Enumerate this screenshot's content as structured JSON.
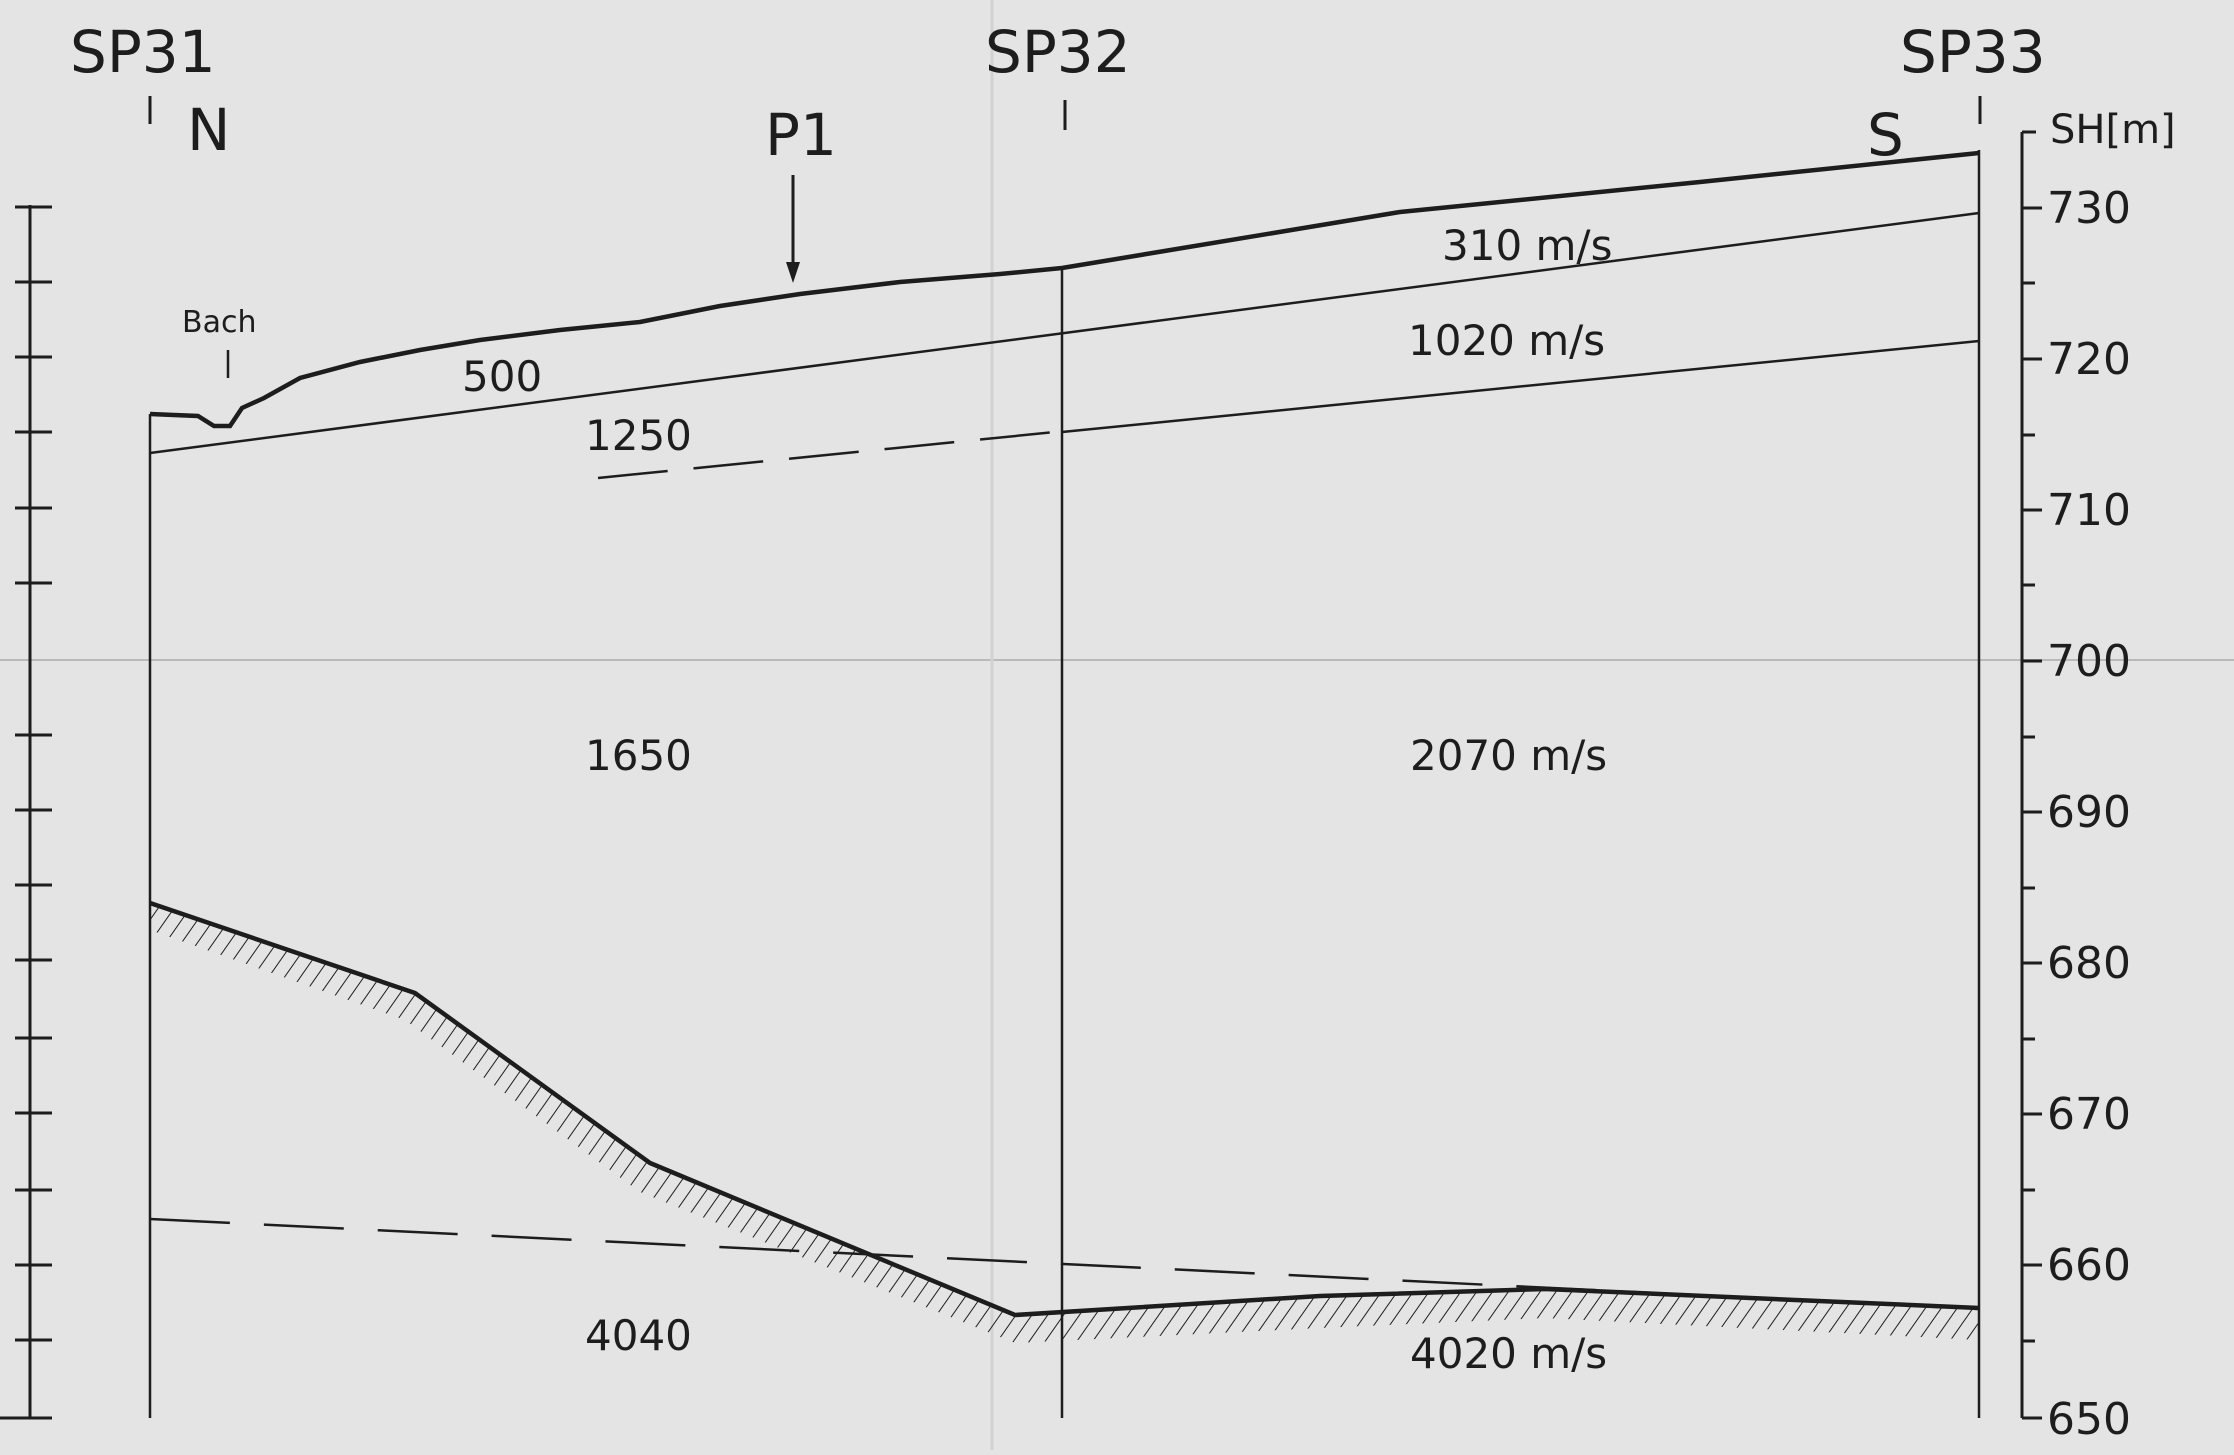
{
  "shotpoints": {
    "sp31": "SP31",
    "sp32": "SP32",
    "sp33": "SP33"
  },
  "directions": {
    "north": "N",
    "south": "S"
  },
  "marker": {
    "p1": "P1",
    "bach": "Bach"
  },
  "axis": {
    "label": "SH[m]",
    "ticks": [
      "730",
      "720",
      "710",
      "700",
      "690",
      "680",
      "670",
      "660",
      "650"
    ]
  },
  "velocities": {
    "v310": "310 m/s",
    "v1020": "1020 m/s",
    "v500": "500",
    "v1250": "1250",
    "v1650": "1650",
    "v2070": "2070  m/s",
    "v4040": "4040",
    "v4020": "4020 m/s"
  },
  "colors": {
    "paper": "#e4e4e4",
    "ink": "#1d1d1d"
  }
}
